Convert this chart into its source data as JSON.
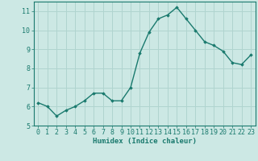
{
  "x": [
    0,
    1,
    2,
    3,
    4,
    5,
    6,
    7,
    8,
    9,
    10,
    11,
    12,
    13,
    14,
    15,
    16,
    17,
    18,
    19,
    20,
    21,
    22,
    23
  ],
  "y": [
    6.2,
    6.0,
    5.5,
    5.8,
    6.0,
    6.3,
    6.7,
    6.7,
    6.3,
    6.3,
    7.0,
    8.8,
    9.9,
    10.6,
    10.8,
    11.2,
    10.6,
    10.0,
    9.4,
    9.2,
    8.9,
    8.3,
    8.2,
    8.7
  ],
  "line_color": "#1a7a6e",
  "marker": "D",
  "marker_size": 1.8,
  "bg_color": "#cce8e4",
  "grid_color": "#b0d4cf",
  "xlabel": "Humidex (Indice chaleur)",
  "ylim": [
    5,
    11.5
  ],
  "xlim": [
    -0.5,
    23.5
  ],
  "yticks": [
    5,
    6,
    7,
    8,
    9,
    10,
    11
  ],
  "xticks": [
    0,
    1,
    2,
    3,
    4,
    5,
    6,
    7,
    8,
    9,
    10,
    11,
    12,
    13,
    14,
    15,
    16,
    17,
    18,
    19,
    20,
    21,
    22,
    23
  ],
  "tick_color": "#1a7a6e",
  "xlabel_fontsize": 6.5,
  "tick_fontsize": 6.0,
  "line_width": 1.0
}
